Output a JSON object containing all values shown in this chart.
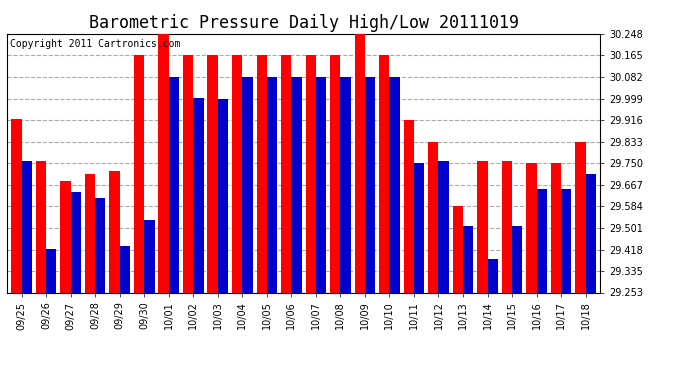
{
  "title": "Barometric Pressure Daily High/Low 20111019",
  "copyright": "Copyright 2011 Cartronics.com",
  "dates": [
    "09/25",
    "09/26",
    "09/27",
    "09/28",
    "09/29",
    "09/30",
    "10/01",
    "10/02",
    "10/03",
    "10/04",
    "10/05",
    "10/06",
    "10/07",
    "10/08",
    "10/09",
    "10/10",
    "10/11",
    "10/12",
    "10/13",
    "10/14",
    "10/15",
    "10/16",
    "10/17",
    "10/18"
  ],
  "highs": [
    29.92,
    29.76,
    29.68,
    29.71,
    29.72,
    30.165,
    30.248,
    30.165,
    30.165,
    30.165,
    30.165,
    30.165,
    30.165,
    30.165,
    30.248,
    30.165,
    29.916,
    29.833,
    29.584,
    29.76,
    29.76,
    29.75,
    29.75,
    29.833
  ],
  "lows": [
    29.76,
    29.42,
    29.64,
    29.615,
    29.43,
    29.53,
    30.082,
    30.0,
    29.999,
    30.082,
    30.082,
    30.082,
    30.082,
    30.082,
    30.082,
    30.082,
    29.75,
    29.76,
    29.51,
    29.38,
    29.51,
    29.65,
    29.65,
    29.71
  ],
  "high_color": "#ff0000",
  "low_color": "#0000cc",
  "background_color": "#ffffff",
  "grid_color": "#aaaaaa",
  "ylim_min": 29.253,
  "ylim_max": 30.248,
  "yticks": [
    29.253,
    29.335,
    29.418,
    29.501,
    29.584,
    29.667,
    29.75,
    29.833,
    29.916,
    29.999,
    30.082,
    30.165,
    30.248
  ],
  "title_fontsize": 12,
  "copyright_fontsize": 7,
  "tick_fontsize": 7,
  "bar_width": 0.42
}
